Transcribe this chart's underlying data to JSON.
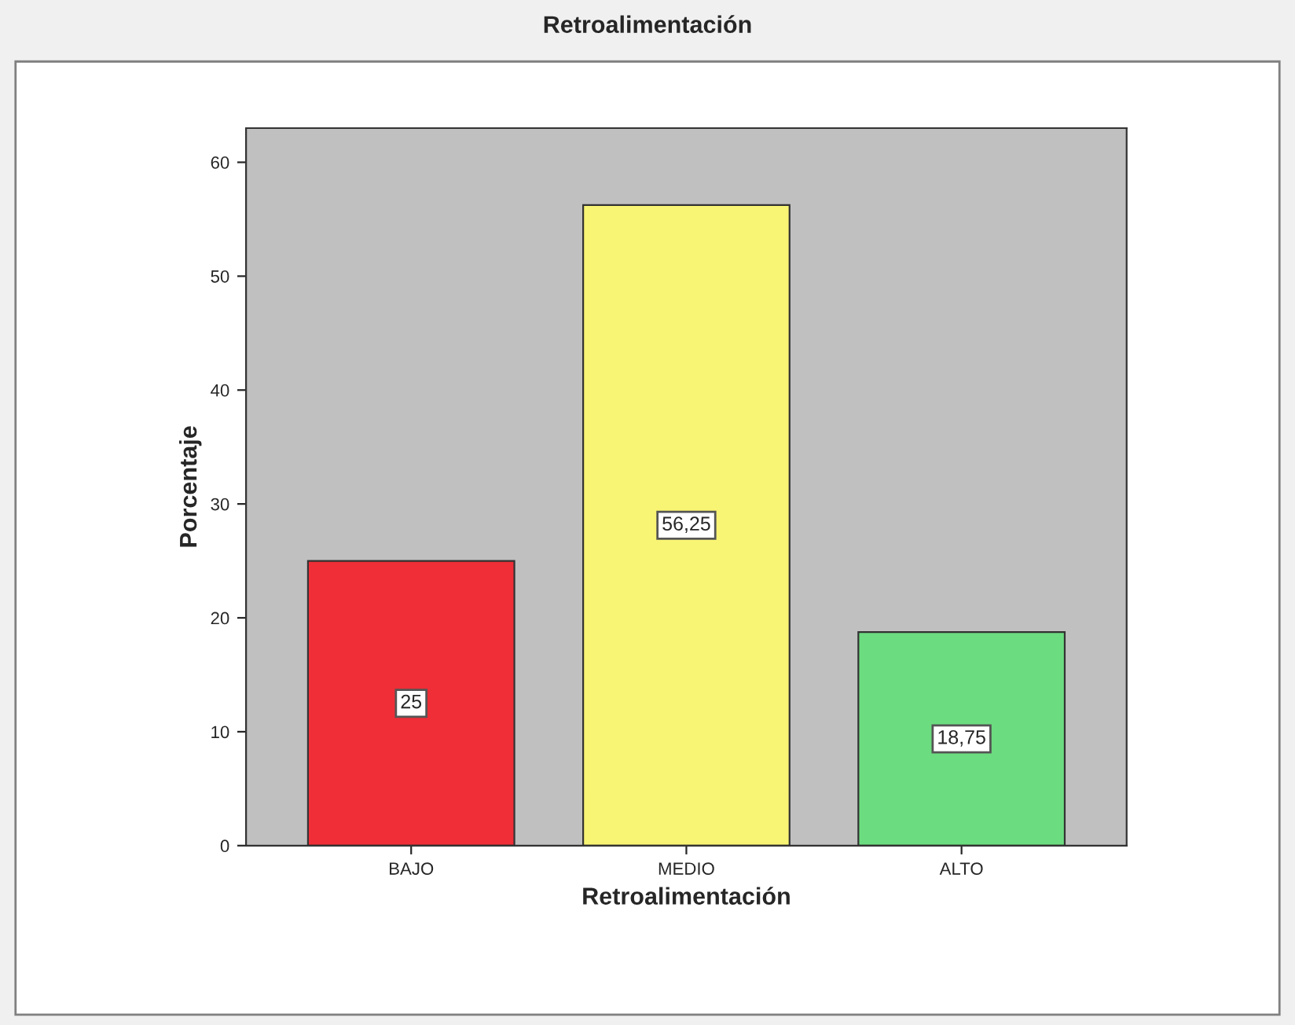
{
  "chart_data": {
    "type": "bar",
    "title": "Retroalimentación",
    "xlabel": "Retroalimentación",
    "ylabel": "Porcentaje",
    "categories": [
      "BAJO",
      "MEDIO",
      "ALTO"
    ],
    "values": [
      25,
      56.25,
      18.75
    ],
    "colors": [
      "#ef2e37",
      "#f9f574",
      "#6cdc80"
    ],
    "value_labels": [
      "25",
      "56,25",
      "18,75"
    ],
    "ylim": [
      0,
      63
    ],
    "yticks": [
      0,
      10,
      20,
      30,
      40,
      50,
      60
    ],
    "grid": false
  }
}
